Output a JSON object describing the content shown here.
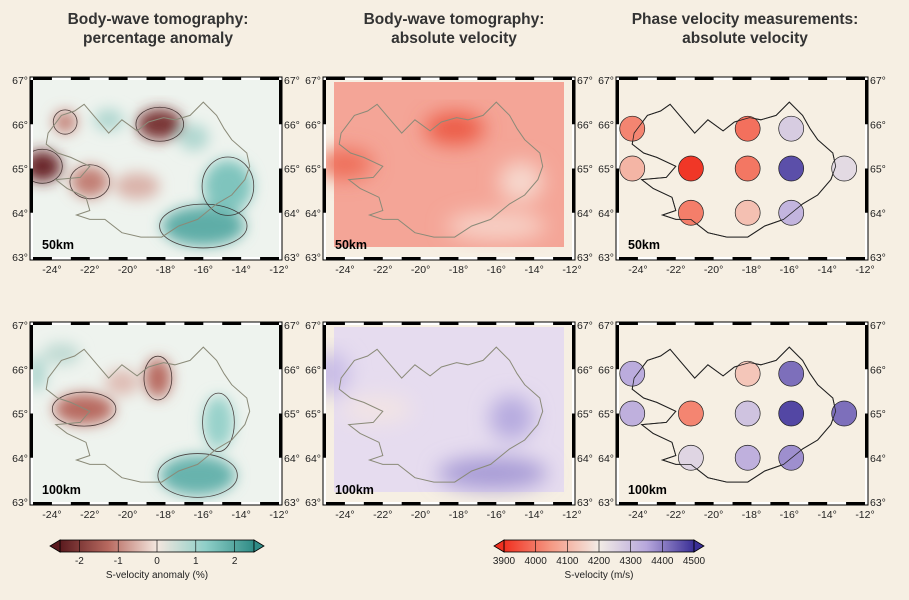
{
  "columns": [
    {
      "title_line1": "Body-wave tomography:",
      "title_line2": "percentage anomaly"
    },
    {
      "title_line1": "Body-wave tomography:",
      "title_line2": "absolute velocity"
    },
    {
      "title_line1": "Phase velocity measurements:",
      "title_line2": "absolute velocity"
    }
  ],
  "depths": [
    "50km",
    "100km"
  ],
  "lon_ticks": [
    "-24°",
    "-22°",
    "-20°",
    "-18°",
    "-16°",
    "-14°",
    "-12°"
  ],
  "lat_ticks": [
    "67°",
    "66°",
    "65°",
    "64°",
    "63°"
  ],
  "colorbar_anomaly": {
    "label": "S-velocity anomaly (%)",
    "ticks": [
      "-2",
      "-1",
      "0",
      "1",
      "2"
    ],
    "colors": [
      "#5a1a1e",
      "#b86a60",
      "#f3e7df",
      "#8fcfc8",
      "#2f8c86"
    ]
  },
  "colorbar_velocity": {
    "label": "S-velocity (m/s)",
    "ticks": [
      "3900",
      "4000",
      "4100",
      "4200",
      "4300",
      "4400",
      "4500"
    ],
    "colors": [
      "#f03020",
      "#f59a85",
      "#f3ece6",
      "#b7a7dc",
      "#3a2f96"
    ]
  },
  "phase_velocity_points": {
    "50km": [
      {
        "lon": -24.3,
        "lat": 65.9,
        "velocity": 4020
      },
      {
        "lon": -18.2,
        "lat": 65.9,
        "velocity": 3990
      },
      {
        "lon": -15.9,
        "lat": 65.9,
        "velocity": 4270
      },
      {
        "lon": -24.3,
        "lat": 65.0,
        "velocity": 4100
      },
      {
        "lon": -21.2,
        "lat": 65.0,
        "velocity": 3910
      },
      {
        "lon": -18.2,
        "lat": 65.0,
        "velocity": 4000
      },
      {
        "lon": -15.9,
        "lat": 65.0,
        "velocity": 4460
      },
      {
        "lon": -13.1,
        "lat": 65.0,
        "velocity": 4240
      },
      {
        "lon": -21.2,
        "lat": 64.0,
        "velocity": 4010
      },
      {
        "lon": -18.2,
        "lat": 64.0,
        "velocity": 4120
      },
      {
        "lon": -15.9,
        "lat": 64.0,
        "velocity": 4320
      }
    ],
    "100km": [
      {
        "lon": -24.3,
        "lat": 65.9,
        "velocity": 4340
      },
      {
        "lon": -18.2,
        "lat": 65.9,
        "velocity": 4130
      },
      {
        "lon": -15.9,
        "lat": 65.9,
        "velocity": 4420
      },
      {
        "lon": -24.3,
        "lat": 65.0,
        "velocity": 4330
      },
      {
        "lon": -21.2,
        "lat": 65.0,
        "velocity": 4020
      },
      {
        "lon": -18.2,
        "lat": 65.0,
        "velocity": 4290
      },
      {
        "lon": -15.9,
        "lat": 65.0,
        "velocity": 4470
      },
      {
        "lon": -13.1,
        "lat": 65.0,
        "velocity": 4420
      },
      {
        "lon": -21.2,
        "lat": 64.0,
        "velocity": 4250
      },
      {
        "lon": -18.2,
        "lat": 64.0,
        "velocity": 4330
      },
      {
        "lon": -15.9,
        "lat": 64.0,
        "velocity": 4380
      }
    ]
  }
}
